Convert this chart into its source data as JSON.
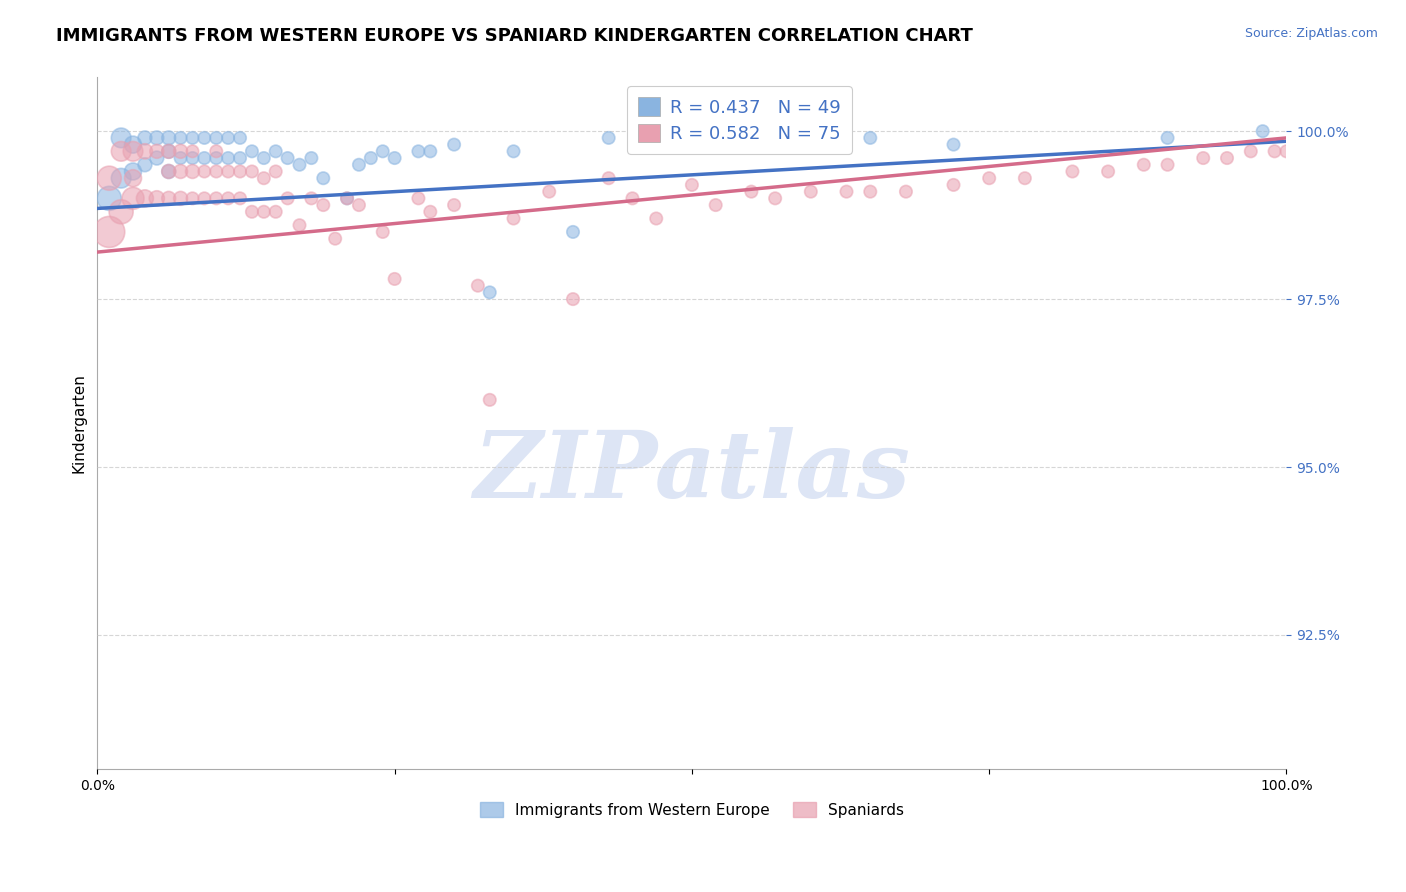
{
  "title": "IMMIGRANTS FROM WESTERN EUROPE VS SPANIARD KINDERGARTEN CORRELATION CHART",
  "source_text": "Source: ZipAtlas.com",
  "ylabel": "Kindergarten",
  "legend_labels": [
    "Immigrants from Western Europe",
    "Spaniards"
  ],
  "blue_color": "#8ab4e0",
  "pink_color": "#e8a0b0",
  "blue_line_color": "#4472c4",
  "pink_line_color": "#d46b8a",
  "axis_label_color": "#4472c4",
  "R_blue": 0.437,
  "N_blue": 49,
  "R_pink": 0.582,
  "N_pink": 75,
  "xlim": [
    0.0,
    1.0
  ],
  "ylim": [
    0.905,
    1.008
  ],
  "yticks": [
    0.925,
    0.95,
    0.975,
    1.0
  ],
  "ytick_labels": [
    "92.5%",
    "95.0%",
    "97.5%",
    "100.0%"
  ],
  "background_color": "#ffffff",
  "blue_scatter_x": [
    0.01,
    0.02,
    0.02,
    0.03,
    0.03,
    0.04,
    0.04,
    0.05,
    0.05,
    0.06,
    0.06,
    0.06,
    0.07,
    0.07,
    0.08,
    0.08,
    0.09,
    0.09,
    0.1,
    0.1,
    0.11,
    0.11,
    0.12,
    0.12,
    0.13,
    0.14,
    0.15,
    0.16,
    0.17,
    0.18,
    0.19,
    0.21,
    0.22,
    0.23,
    0.24,
    0.25,
    0.27,
    0.28,
    0.3,
    0.33,
    0.35,
    0.4,
    0.43,
    0.5,
    0.55,
    0.65,
    0.72,
    0.9,
    0.98
  ],
  "blue_scatter_y": [
    0.99,
    0.999,
    0.993,
    0.998,
    0.994,
    0.999,
    0.995,
    0.999,
    0.996,
    0.999,
    0.997,
    0.994,
    0.999,
    0.996,
    0.999,
    0.996,
    0.999,
    0.996,
    0.999,
    0.996,
    0.999,
    0.996,
    0.999,
    0.996,
    0.997,
    0.996,
    0.997,
    0.996,
    0.995,
    0.996,
    0.993,
    0.99,
    0.995,
    0.996,
    0.997,
    0.996,
    0.997,
    0.997,
    0.998,
    0.976,
    0.997,
    0.985,
    0.999,
    0.998,
    0.998,
    0.999,
    0.998,
    0.999,
    1.0
  ],
  "blue_scatter_sizes": [
    300,
    200,
    200,
    150,
    150,
    100,
    100,
    100,
    100,
    100,
    100,
    100,
    80,
    80,
    80,
    80,
    80,
    80,
    80,
    80,
    80,
    80,
    80,
    80,
    80,
    80,
    80,
    80,
    80,
    80,
    80,
    80,
    80,
    80,
    80,
    80,
    80,
    80,
    80,
    80,
    80,
    80,
    80,
    80,
    80,
    80,
    80,
    80,
    80
  ],
  "pink_scatter_x": [
    0.01,
    0.01,
    0.02,
    0.02,
    0.03,
    0.03,
    0.03,
    0.04,
    0.04,
    0.05,
    0.05,
    0.06,
    0.06,
    0.06,
    0.07,
    0.07,
    0.07,
    0.08,
    0.08,
    0.08,
    0.09,
    0.09,
    0.1,
    0.1,
    0.1,
    0.11,
    0.11,
    0.12,
    0.12,
    0.13,
    0.13,
    0.14,
    0.14,
    0.15,
    0.15,
    0.16,
    0.17,
    0.18,
    0.19,
    0.2,
    0.21,
    0.22,
    0.24,
    0.25,
    0.27,
    0.28,
    0.3,
    0.32,
    0.33,
    0.35,
    0.38,
    0.4,
    0.43,
    0.45,
    0.47,
    0.5,
    0.52,
    0.55,
    0.57,
    0.6,
    0.63,
    0.65,
    0.68,
    0.72,
    0.75,
    0.78,
    0.82,
    0.85,
    0.88,
    0.9,
    0.93,
    0.95,
    0.97,
    0.99,
    1.0
  ],
  "pink_scatter_y": [
    0.985,
    0.993,
    0.988,
    0.997,
    0.99,
    0.997,
    0.993,
    0.99,
    0.997,
    0.99,
    0.997,
    0.994,
    0.99,
    0.997,
    0.994,
    0.99,
    0.997,
    0.994,
    0.99,
    0.997,
    0.994,
    0.99,
    0.994,
    0.99,
    0.997,
    0.994,
    0.99,
    0.994,
    0.99,
    0.994,
    0.988,
    0.993,
    0.988,
    0.994,
    0.988,
    0.99,
    0.986,
    0.99,
    0.989,
    0.984,
    0.99,
    0.989,
    0.985,
    0.978,
    0.99,
    0.988,
    0.989,
    0.977,
    0.96,
    0.987,
    0.991,
    0.975,
    0.993,
    0.99,
    0.987,
    0.992,
    0.989,
    0.991,
    0.99,
    0.991,
    0.991,
    0.991,
    0.991,
    0.992,
    0.993,
    0.993,
    0.994,
    0.994,
    0.995,
    0.995,
    0.996,
    0.996,
    0.997,
    0.997,
    0.997
  ],
  "pink_scatter_sizes": [
    500,
    300,
    300,
    200,
    250,
    200,
    150,
    150,
    120,
    120,
    100,
    100,
    100,
    100,
    100,
    100,
    100,
    100,
    80,
    80,
    80,
    80,
    80,
    80,
    80,
    80,
    80,
    80,
    80,
    80,
    80,
    80,
    80,
    80,
    80,
    80,
    80,
    80,
    80,
    80,
    80,
    80,
    80,
    80,
    80,
    80,
    80,
    80,
    80,
    80,
    80,
    80,
    80,
    80,
    80,
    80,
    80,
    80,
    80,
    80,
    80,
    80,
    80,
    80,
    80,
    80,
    80,
    80,
    80,
    80,
    80,
    80,
    80,
    80,
    80
  ],
  "watermark_text": "ZIPatlas",
  "watermark_color": "#dde5f5",
  "title_fontsize": 13,
  "axis_label_fontsize": 11,
  "tick_fontsize": 10,
  "legend_text_color": "#4472c4"
}
